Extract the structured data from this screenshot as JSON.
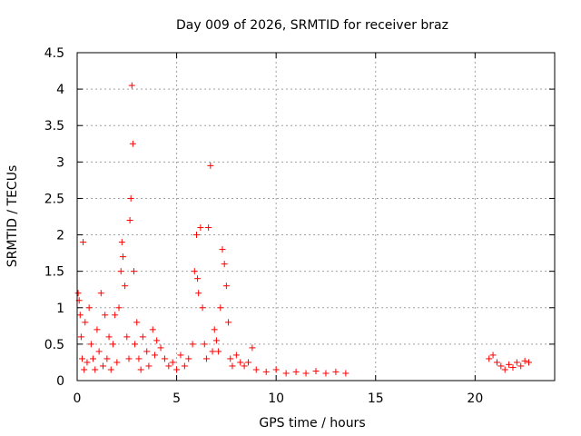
{
  "chart_data": {
    "type": "scatter",
    "title": "Day 009 of 2026, SRMTID for receiver braz",
    "xlabel": "GPS time / hours",
    "ylabel": "SRMTID / TECUs",
    "xlim": [
      0,
      24
    ],
    "ylim": [
      0,
      4.5
    ],
    "xticks": [
      "0",
      "5",
      "10",
      "15",
      "20"
    ],
    "yticks": [
      "0",
      "0.5",
      "1",
      "1.5",
      "2",
      "2.5",
      "3",
      "3.5",
      "4",
      "4.5"
    ],
    "grid": true,
    "marker": "+",
    "color": "#ff0000",
    "series": [
      {
        "name": "SRMTID",
        "points": [
          [
            0.05,
            1.2
          ],
          [
            0.1,
            1.1
          ],
          [
            0.15,
            0.9
          ],
          [
            0.2,
            0.6
          ],
          [
            0.25,
            0.3
          ],
          [
            0.3,
            1.9
          ],
          [
            0.35,
            0.15
          ],
          [
            0.4,
            0.8
          ],
          [
            0.5,
            0.25
          ],
          [
            0.6,
            1.0
          ],
          [
            0.7,
            0.5
          ],
          [
            0.8,
            0.3
          ],
          [
            0.9,
            0.15
          ],
          [
            1.0,
            0.7
          ],
          [
            1.1,
            0.4
          ],
          [
            1.2,
            1.2
          ],
          [
            1.3,
            0.2
          ],
          [
            1.4,
            0.9
          ],
          [
            1.5,
            0.3
          ],
          [
            1.6,
            0.6
          ],
          [
            1.7,
            0.15
          ],
          [
            1.8,
            0.5
          ],
          [
            1.9,
            0.9
          ],
          [
            2.0,
            0.25
          ],
          [
            2.1,
            1.0
          ],
          [
            2.2,
            1.5
          ],
          [
            2.25,
            1.9
          ],
          [
            2.3,
            1.7
          ],
          [
            2.4,
            1.3
          ],
          [
            2.5,
            0.6
          ],
          [
            2.6,
            0.3
          ],
          [
            2.65,
            2.2
          ],
          [
            2.7,
            2.5
          ],
          [
            2.75,
            4.05
          ],
          [
            2.8,
            3.25
          ],
          [
            2.85,
            1.5
          ],
          [
            2.9,
            0.5
          ],
          [
            3.0,
            0.8
          ],
          [
            3.1,
            0.3
          ],
          [
            3.2,
            0.15
          ],
          [
            3.3,
            0.6
          ],
          [
            3.5,
            0.4
          ],
          [
            3.6,
            0.2
          ],
          [
            3.8,
            0.7
          ],
          [
            3.9,
            0.35
          ],
          [
            4.0,
            0.55
          ],
          [
            4.2,
            0.45
          ],
          [
            4.4,
            0.3
          ],
          [
            4.6,
            0.2
          ],
          [
            4.8,
            0.25
          ],
          [
            5.0,
            0.15
          ],
          [
            5.2,
            0.35
          ],
          [
            5.4,
            0.2
          ],
          [
            5.6,
            0.3
          ],
          [
            5.8,
            0.5
          ],
          [
            5.9,
            1.5
          ],
          [
            6.0,
            2.0
          ],
          [
            6.05,
            1.4
          ],
          [
            6.1,
            1.2
          ],
          [
            6.2,
            2.1
          ],
          [
            6.3,
            1.0
          ],
          [
            6.4,
            0.5
          ],
          [
            6.5,
            0.3
          ],
          [
            6.6,
            2.1
          ],
          [
            6.7,
            2.95
          ],
          [
            6.8,
            0.4
          ],
          [
            6.9,
            0.7
          ],
          [
            7.0,
            0.55
          ],
          [
            7.1,
            0.4
          ],
          [
            7.2,
            1.0
          ],
          [
            7.3,
            1.8
          ],
          [
            7.4,
            1.6
          ],
          [
            7.5,
            1.3
          ],
          [
            7.6,
            0.8
          ],
          [
            7.7,
            0.3
          ],
          [
            7.8,
            0.2
          ],
          [
            8.0,
            0.35
          ],
          [
            8.2,
            0.25
          ],
          [
            8.4,
            0.2
          ],
          [
            8.6,
            0.25
          ],
          [
            8.8,
            0.45
          ],
          [
            9.0,
            0.15
          ],
          [
            9.5,
            0.12
          ],
          [
            10.0,
            0.15
          ],
          [
            10.5,
            0.1
          ],
          [
            11.0,
            0.12
          ],
          [
            11.5,
            0.1
          ],
          [
            12.0,
            0.13
          ],
          [
            12.5,
            0.1
          ],
          [
            13.0,
            0.12
          ],
          [
            13.5,
            0.1
          ],
          [
            20.7,
            0.3
          ],
          [
            20.9,
            0.35
          ],
          [
            21.1,
            0.25
          ],
          [
            21.3,
            0.2
          ],
          [
            21.5,
            0.15
          ],
          [
            21.7,
            0.22
          ],
          [
            21.9,
            0.18
          ],
          [
            22.1,
            0.25
          ],
          [
            22.3,
            0.2
          ],
          [
            22.5,
            0.27
          ],
          [
            22.7,
            0.25
          ]
        ]
      }
    ]
  }
}
